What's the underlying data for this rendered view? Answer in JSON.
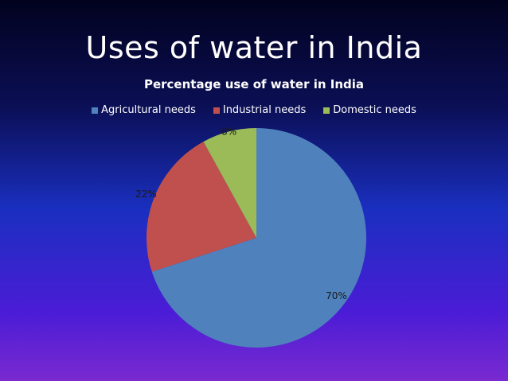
{
  "slide": {
    "title": "Uses of water in India"
  },
  "chart_data": {
    "type": "pie",
    "title": "Percentage use of water in India",
    "legend_position": "top",
    "categories": [
      "Agricultural needs",
      "Industrial needs",
      "Domestic needs"
    ],
    "values": [
      70,
      22,
      8
    ],
    "labels": [
      "70%",
      "22%",
      "8%"
    ],
    "colors": [
      "#4f81bd",
      "#c0504d",
      "#9bbb59"
    ]
  }
}
